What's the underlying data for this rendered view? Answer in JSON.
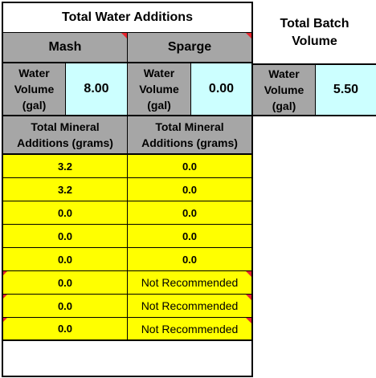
{
  "titles": {
    "total_water_additions": "Total Water Additions",
    "total_batch_volume": "Total Batch Volume"
  },
  "columns": {
    "mash": "Mash",
    "sparge": "Sparge"
  },
  "water_volume_label": {
    "line1": "Water",
    "line2": "Volume",
    "line3": "(gal)"
  },
  "values": {
    "mash_water_volume": "8.00",
    "sparge_water_volume": "0.00",
    "total_batch_volume": "5.50"
  },
  "mineral_header": {
    "line1": "Total Mineral",
    "line2": "Additions (grams)"
  },
  "mineral_rows": [
    {
      "mash": "3.2",
      "sparge": "0.0"
    },
    {
      "mash": "3.2",
      "sparge": "0.0"
    },
    {
      "mash": "0.0",
      "sparge": "0.0"
    },
    {
      "mash": "0.0",
      "sparge": "0.0"
    },
    {
      "mash": "0.0",
      "sparge": "0.0"
    },
    {
      "mash": "0.0",
      "sparge": "Not Recommended"
    },
    {
      "mash": "0.0",
      "sparge": "Not Recommended"
    },
    {
      "mash": "0.0",
      "sparge": "Not Recommended"
    }
  ],
  "colors": {
    "header_gray": "#a6a6a6",
    "value_cyan": "#ccffff",
    "mineral_yellow": "#ffff00",
    "comment_marker_red": "#e8262f"
  }
}
